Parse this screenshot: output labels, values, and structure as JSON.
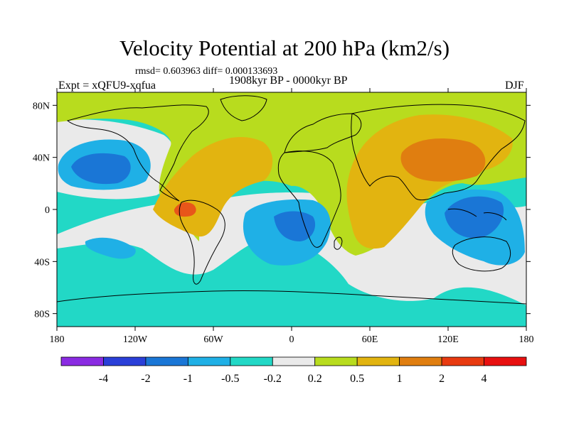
{
  "title": "Velocity Potential at 200 hPa (km2/s)",
  "stats": "rmsd= 0.603963 diff= 0.000133693",
  "period": "1908kyr BP - 0000kyr BP",
  "experiment": "Expt = xQFU9-xqfua",
  "season": "DJF",
  "lat_labels": [
    "80N",
    "40N",
    "0",
    "40S",
    "80S"
  ],
  "lat_values": [
    80,
    40,
    0,
    -40,
    -80
  ],
  "lon_labels": [
    "180",
    "120W",
    "60W",
    "0",
    "60E",
    "120E",
    "180"
  ],
  "lon_values": [
    -180,
    -120,
    -60,
    0,
    60,
    120,
    180
  ],
  "colorbar": {
    "levels": [
      "-4",
      "-2",
      "-1",
      "-0.5",
      "-0.2",
      "0.2",
      "0.5",
      "1",
      "2",
      "4"
    ],
    "colors": [
      "#8a2be2",
      "#2a3fd8",
      "#1a76d6",
      "#1fb0e6",
      "#22d8c6",
      "#eaeaea",
      "#b8dc1e",
      "#e2b410",
      "#e07e10",
      "#e83a10",
      "#e81010"
    ]
  },
  "field_colors": {
    "neg2": "#1a76d6",
    "neg1": "#1fb0e6",
    "neg05": "#22d8c6",
    "zero": "#eaeaea",
    "pos02": "#b8dc1e",
    "pos05": "#e2b410",
    "pos1": "#e07e10",
    "pos2": "#e8561a"
  },
  "coast_color": "#000000"
}
